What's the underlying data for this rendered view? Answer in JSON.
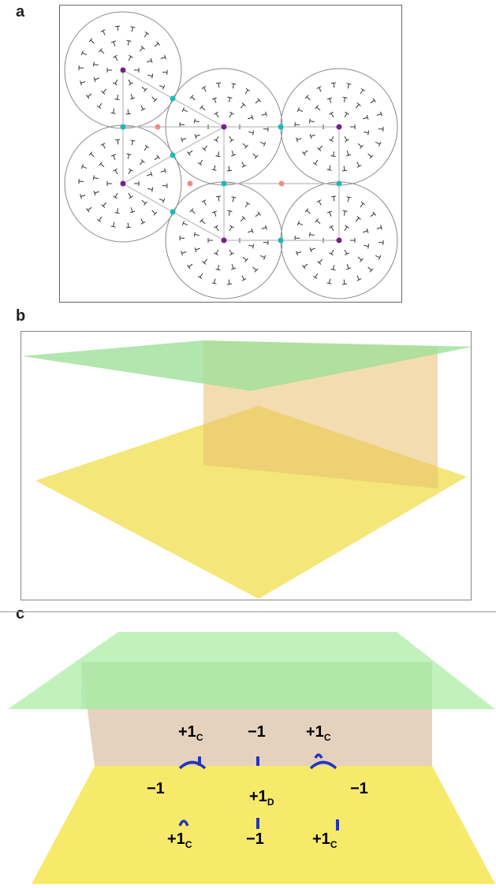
{
  "panels": {
    "a": {
      "letter": "a"
    },
    "b": {
      "letter": "b"
    },
    "c": {
      "letter": "c"
    }
  },
  "colors": {
    "plane_green": "#9fe09a",
    "director_red": "#c81e1e",
    "substrate_yellow": "#f3e36a",
    "defect_blue": "#2435b8",
    "center_purple": "#7a1f8c",
    "junction_cyan": "#1fb8b8",
    "defect_pink": "#f28a8a"
  },
  "defect_labels": {
    "top_left": {
      "value": "+1",
      "sub": "C"
    },
    "top_mid": {
      "value": "−1",
      "sub": ""
    },
    "top_right": {
      "value": "+1",
      "sub": "C"
    },
    "mid_left": {
      "value": "−1",
      "sub": ""
    },
    "mid_center": {
      "value": "+1",
      "sub": "D"
    },
    "mid_right": {
      "value": "−1",
      "sub": ""
    },
    "bot_left": {
      "value": "+1",
      "sub": "C"
    },
    "bot_mid": {
      "value": "−1",
      "sub": ""
    },
    "bot_right": {
      "value": "+1",
      "sub": "C"
    }
  }
}
